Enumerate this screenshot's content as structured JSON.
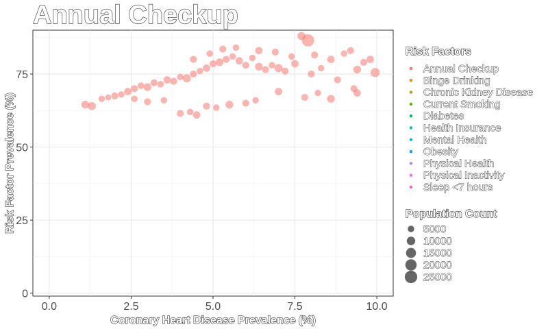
{
  "chart_data": {
    "type": "scatter",
    "title": "Annual Checkup",
    "xlabel": "Coronary Heart Disease Prevalence (%)",
    "ylabel": "Risk Factor Prevalence (%)",
    "xlim": [
      -0.5,
      10.5
    ],
    "ylim": [
      -1,
      90
    ],
    "x_ticks": [
      0.0,
      2.5,
      5.0,
      7.5,
      10.0
    ],
    "x_tick_labels": [
      "0.0",
      "2.5",
      "5.0",
      "7.5",
      "10.0"
    ],
    "y_ticks": [
      0,
      25,
      50,
      75
    ],
    "y_tick_labels": [
      "0",
      "25",
      "50",
      "75"
    ],
    "grid": true,
    "series": [
      {
        "name": "Annual Checkup",
        "color": "#F8766D",
        "points": [
          {
            "x": 1.1,
            "y": 64.5,
            "s": 8000
          },
          {
            "x": 1.3,
            "y": 64.0,
            "s": 9000
          },
          {
            "x": 1.6,
            "y": 66.5,
            "s": 5000
          },
          {
            "x": 1.8,
            "y": 67.0,
            "s": 4000
          },
          {
            "x": 2.0,
            "y": 67.5,
            "s": 6000
          },
          {
            "x": 2.2,
            "y": 68.0,
            "s": 5000
          },
          {
            "x": 2.4,
            "y": 69.0,
            "s": 7000
          },
          {
            "x": 2.6,
            "y": 70.0,
            "s": 6000
          },
          {
            "x": 2.8,
            "y": 71.0,
            "s": 5000
          },
          {
            "x": 3.0,
            "y": 70.5,
            "s": 8000
          },
          {
            "x": 3.2,
            "y": 72.0,
            "s": 6000
          },
          {
            "x": 3.4,
            "y": 71.5,
            "s": 5000
          },
          {
            "x": 3.6,
            "y": 73.0,
            "s": 7000
          },
          {
            "x": 3.8,
            "y": 72.5,
            "s": 6000
          },
          {
            "x": 4.0,
            "y": 74.0,
            "s": 5000
          },
          {
            "x": 4.2,
            "y": 73.5,
            "s": 9000
          },
          {
            "x": 4.4,
            "y": 75.0,
            "s": 6000
          },
          {
            "x": 4.6,
            "y": 76.0,
            "s": 5000
          },
          {
            "x": 4.8,
            "y": 77.0,
            "s": 7000
          },
          {
            "x": 5.0,
            "y": 78.5,
            "s": 6000
          },
          {
            "x": 5.2,
            "y": 79.0,
            "s": 8000
          },
          {
            "x": 5.4,
            "y": 80.0,
            "s": 6000
          },
          {
            "x": 5.6,
            "y": 81.0,
            "s": 5000
          },
          {
            "x": 5.8,
            "y": 79.5,
            "s": 7000
          },
          {
            "x": 6.0,
            "y": 78.0,
            "s": 6000
          },
          {
            "x": 6.2,
            "y": 80.5,
            "s": 5000
          },
          {
            "x": 6.4,
            "y": 77.5,
            "s": 8000
          },
          {
            "x": 6.6,
            "y": 76.5,
            "s": 6000
          },
          {
            "x": 6.8,
            "y": 78.0,
            "s": 5000
          },
          {
            "x": 7.0,
            "y": 77.0,
            "s": 9000
          },
          {
            "x": 7.2,
            "y": 76.0,
            "s": 6000
          },
          {
            "x": 7.5,
            "y": 78.5,
            "s": 7000
          },
          {
            "x": 7.7,
            "y": 88.0,
            "s": 9000
          },
          {
            "x": 7.9,
            "y": 86.5,
            "s": 24000
          },
          {
            "x": 8.0,
            "y": 75.0,
            "s": 6000
          },
          {
            "x": 8.3,
            "y": 77.0,
            "s": 5000
          },
          {
            "x": 8.6,
            "y": 80.0,
            "s": 7000
          },
          {
            "x": 8.8,
            "y": 73.0,
            "s": 6000
          },
          {
            "x": 9.0,
            "y": 82.0,
            "s": 5000
          },
          {
            "x": 9.2,
            "y": 83.0,
            "s": 6000
          },
          {
            "x": 9.4,
            "y": 76.5,
            "s": 8000
          },
          {
            "x": 9.6,
            "y": 79.0,
            "s": 6000
          },
          {
            "x": 9.8,
            "y": 80.0,
            "s": 7000
          },
          {
            "x": 9.95,
            "y": 75.5,
            "s": 12000
          },
          {
            "x": 4.0,
            "y": 61.5,
            "s": 6000
          },
          {
            "x": 4.3,
            "y": 62.0,
            "s": 5000
          },
          {
            "x": 4.5,
            "y": 61.0,
            "s": 7000
          },
          {
            "x": 4.8,
            "y": 64.0,
            "s": 6000
          },
          {
            "x": 5.1,
            "y": 63.5,
            "s": 5000
          },
          {
            "x": 5.5,
            "y": 64.5,
            "s": 8000
          },
          {
            "x": 6.0,
            "y": 65.0,
            "s": 6000
          },
          {
            "x": 6.3,
            "y": 66.0,
            "s": 5000
          },
          {
            "x": 7.0,
            "y": 69.0,
            "s": 7000
          },
          {
            "x": 7.8,
            "y": 67.0,
            "s": 6000
          },
          {
            "x": 8.2,
            "y": 68.5,
            "s": 5000
          },
          {
            "x": 8.6,
            "y": 66.5,
            "s": 8000
          },
          {
            "x": 9.3,
            "y": 70.0,
            "s": 6000
          },
          {
            "x": 9.4,
            "y": 68.5,
            "s": 7000
          },
          {
            "x": 3.5,
            "y": 66.0,
            "s": 5000
          },
          {
            "x": 3.0,
            "y": 65.5,
            "s": 6000
          },
          {
            "x": 2.6,
            "y": 66.5,
            "s": 5000
          },
          {
            "x": 5.3,
            "y": 83.5,
            "s": 6000
          },
          {
            "x": 5.7,
            "y": 84.0,
            "s": 5000
          },
          {
            "x": 6.4,
            "y": 83.0,
            "s": 7000
          },
          {
            "x": 6.9,
            "y": 82.5,
            "s": 6000
          },
          {
            "x": 4.9,
            "y": 82.0,
            "s": 5000
          },
          {
            "x": 4.4,
            "y": 80.0,
            "s": 6000
          },
          {
            "x": 7.4,
            "y": 81.0,
            "s": 5000
          },
          {
            "x": 8.1,
            "y": 81.5,
            "s": 6000
          }
        ]
      }
    ]
  },
  "legend": {
    "risk_title": "Risk Factors",
    "risk_items": [
      {
        "label": "Annual Checkup",
        "color": "#F8766D"
      },
      {
        "label": "Binge Drinking",
        "color": "#DB8E00"
      },
      {
        "label": "Chronic Kidney Disease",
        "color": "#AEA200"
      },
      {
        "label": "Current Smoking",
        "color": "#64B200"
      },
      {
        "label": "Diabetes",
        "color": "#00BD5C"
      },
      {
        "label": "Health Insurance",
        "color": "#00C1A7"
      },
      {
        "label": "Mental Health",
        "color": "#00BADE"
      },
      {
        "label": "Obesity",
        "color": "#00A6FF"
      },
      {
        "label": "Physical Health",
        "color": "#B385FF"
      },
      {
        "label": "Physical Inactivity",
        "color": "#EF67EB"
      },
      {
        "label": "Sleep <7 hours",
        "color": "#FF63B6"
      }
    ],
    "size_title": "Population Count",
    "size_items": [
      {
        "label": "5000",
        "value": 5000
      },
      {
        "label": "10000",
        "value": 10000
      },
      {
        "label": "15000",
        "value": 15000
      },
      {
        "label": "20000",
        "value": 20000
      },
      {
        "label": "25000",
        "value": 25000
      }
    ]
  }
}
